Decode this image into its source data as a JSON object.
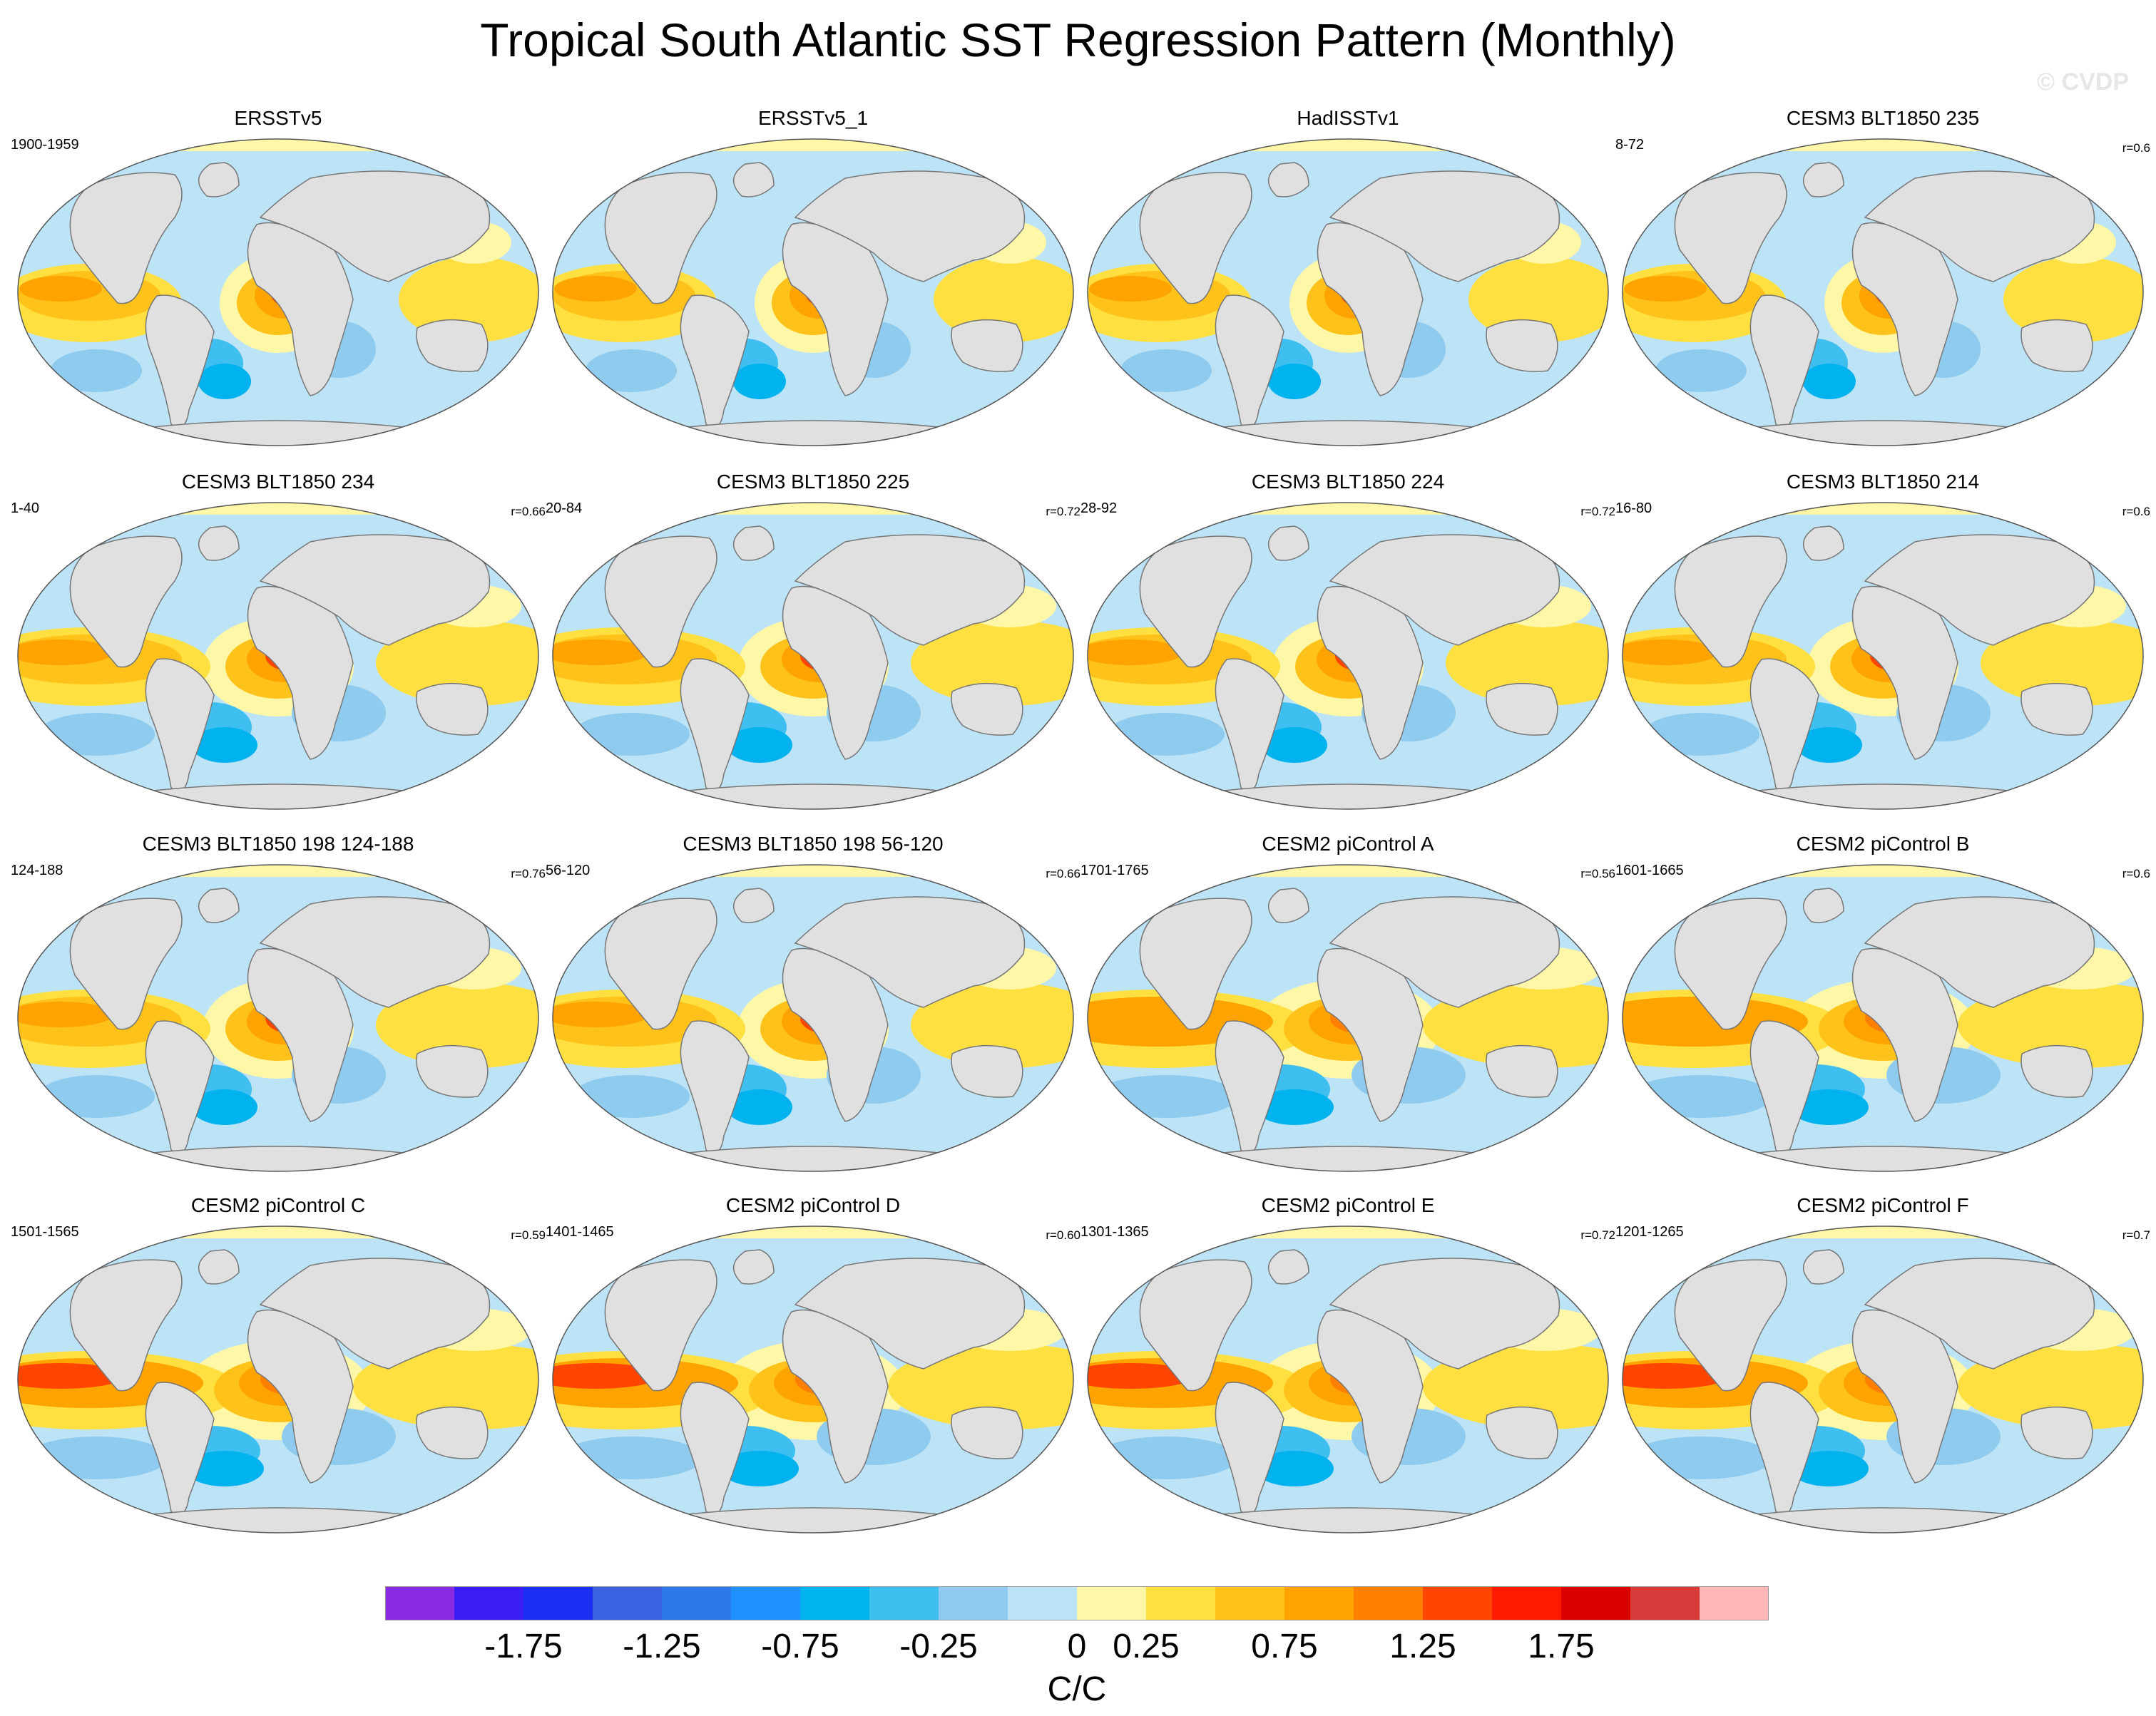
{
  "title": "Tropical South Atlantic SST Regression Pattern (Monthly)",
  "watermark": "© CVDP",
  "panels": [
    {
      "title": "ERSSTv5",
      "period": "1900-1959",
      "corr": ""
    },
    {
      "title": "ERSSTv5_1",
      "period": "",
      "corr": ""
    },
    {
      "title": "HadISSTv1",
      "period": "",
      "corr": ""
    },
    {
      "title": "CESM3 BLT1850 235",
      "period": "8-72",
      "corr": "r=0.6"
    },
    {
      "title": "CESM3 BLT1850 234",
      "period": "1-40",
      "corr": "r=0.66"
    },
    {
      "title": "CESM3 BLT1850 225",
      "period": "20-84",
      "corr": "r=0.72"
    },
    {
      "title": "CESM3 BLT1850 224",
      "period": "28-92",
      "corr": "r=0.72"
    },
    {
      "title": "CESM3 BLT1850 214",
      "period": "16-80",
      "corr": "r=0.6"
    },
    {
      "title": "CESM3 BLT1850 198 124-188",
      "period": "124-188",
      "corr": "r=0.76"
    },
    {
      "title": "CESM3 BLT1850 198 56-120",
      "period": "56-120",
      "corr": "r=0.66"
    },
    {
      "title": "CESM2 piControl A",
      "period": "1701-1765",
      "corr": "r=0.56"
    },
    {
      "title": "CESM2 piControl B",
      "period": "1601-1665",
      "corr": "r=0.6"
    },
    {
      "title": "CESM2 piControl C",
      "period": "1501-1565",
      "corr": "r=0.59"
    },
    {
      "title": "CESM2 piControl D",
      "period": "1401-1465",
      "corr": "r=0.60"
    },
    {
      "title": "CESM2 piControl E",
      "period": "1301-1365",
      "corr": "r=0.72"
    },
    {
      "title": "CESM2 piControl F",
      "period": "1201-1265",
      "corr": "r=0.7"
    }
  ],
  "chart_data": {
    "type": "map-panels",
    "projection": "Robinson (global)",
    "units": "C/C",
    "colorbar": {
      "label": "C/C",
      "tick_labels": [
        "-1.75",
        "-1.25",
        "-0.75",
        "-0.25",
        "0",
        "0.25",
        "0.75",
        "1.25",
        "1.75"
      ],
      "range": [
        -2.0,
        2.0
      ],
      "colors": [
        "#8a2be2",
        "#3a1cf4",
        "#1a2ff2",
        "#3a62e0",
        "#2c7ae8",
        "#1e90ff",
        "#00b2ee",
        "#3fbff0",
        "#8ecbee",
        "#bde3f6",
        "#fff7a8",
        "#ffe040",
        "#ffc21a",
        "#ffa300",
        "#ff7f00",
        "#ff4500",
        "#ff1a00",
        "#d90000",
        "#d83a3a",
        "#ffb6b6"
      ]
    }
  }
}
